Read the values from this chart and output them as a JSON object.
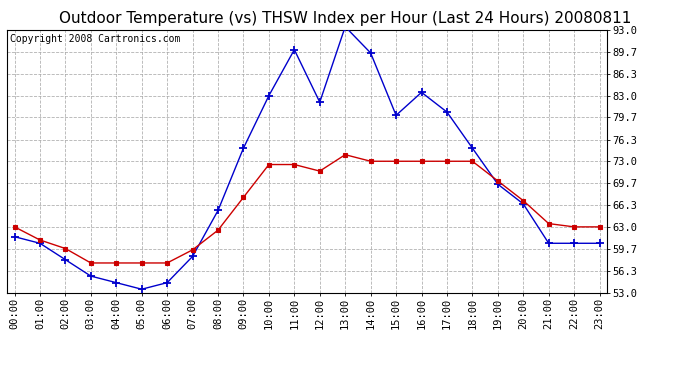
{
  "title": "Outdoor Temperature (vs) THSW Index per Hour (Last 24 Hours) 20080811",
  "copyright": "Copyright 2008 Cartronics.com",
  "hours": [
    "00:00",
    "01:00",
    "02:00",
    "03:00",
    "04:00",
    "05:00",
    "06:00",
    "07:00",
    "08:00",
    "09:00",
    "10:00",
    "11:00",
    "12:00",
    "13:00",
    "14:00",
    "15:00",
    "16:00",
    "17:00",
    "18:00",
    "19:00",
    "20:00",
    "21:00",
    "22:00",
    "23:00"
  ],
  "temp": [
    63.0,
    61.0,
    59.7,
    57.5,
    57.5,
    57.5,
    57.5,
    59.5,
    62.5,
    67.5,
    72.5,
    72.5,
    71.5,
    74.0,
    73.0,
    73.0,
    73.0,
    73.0,
    73.0,
    70.0,
    67.0,
    63.5,
    63.0,
    63.0
  ],
  "thsw": [
    61.5,
    60.5,
    58.0,
    55.5,
    54.5,
    53.5,
    54.5,
    58.5,
    65.5,
    75.0,
    83.0,
    90.0,
    82.0,
    93.5,
    89.5,
    80.0,
    83.5,
    80.5,
    75.0,
    69.5,
    66.5,
    60.5,
    60.5,
    60.5
  ],
  "ylim_min": 53.0,
  "ylim_max": 93.0,
  "yticks": [
    53.0,
    56.3,
    59.7,
    63.0,
    66.3,
    69.7,
    73.0,
    76.3,
    79.7,
    83.0,
    86.3,
    89.7,
    93.0
  ],
  "temp_color": "#cc0000",
  "thsw_color": "#0000cc",
  "grid_color": "#aaaaaa",
  "background_color": "#ffffff",
  "title_fontsize": 11,
  "copyright_fontsize": 7
}
